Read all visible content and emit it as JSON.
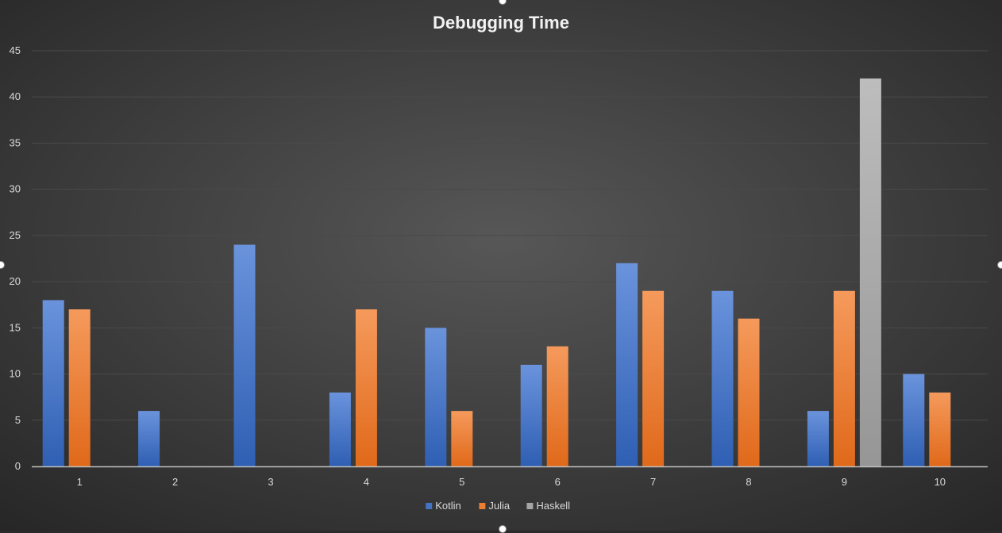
{
  "colors": {
    "Kotlin": "#4472C4",
    "Julia": "#ED7D31",
    "Haskell": "#A5A5A5",
    "background_center": "#575757",
    "background_edge": "#262626",
    "gridline": "#4a4a4a",
    "axis_text": "#d9d9d9",
    "title_text": "#f2f2f2"
  },
  "chart_data": {
    "type": "bar",
    "title": "Debugging Time",
    "xlabel": "",
    "ylabel": "",
    "categories": [
      "1",
      "2",
      "3",
      "4",
      "5",
      "6",
      "7",
      "8",
      "9",
      "10"
    ],
    "series": [
      {
        "name": "Kotlin",
        "values": [
          18,
          6,
          24,
          8,
          15,
          11,
          22,
          19,
          6,
          10
        ]
      },
      {
        "name": "Julia",
        "values": [
          17,
          0,
          0,
          17,
          6,
          13,
          19,
          16,
          19,
          8
        ]
      },
      {
        "name": "Haskell",
        "values": [
          0,
          0,
          0,
          0,
          0,
          0,
          0,
          0,
          42,
          0
        ]
      }
    ],
    "ylim": [
      0,
      45
    ],
    "yticks": [
      0,
      5,
      10,
      15,
      20,
      25,
      30,
      35,
      40,
      45
    ],
    "grid": true,
    "legend_position": "bottom"
  }
}
